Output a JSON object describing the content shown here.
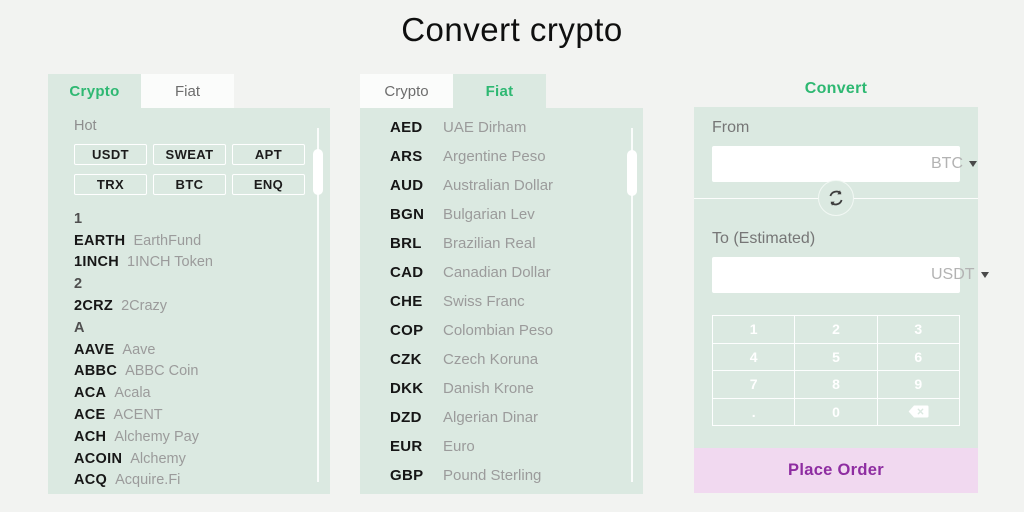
{
  "page": {
    "title": "Convert crypto"
  },
  "colors": {
    "accent_green": "#2eb872",
    "panel_mint": "#dbe9e1",
    "order_purple": "#8e2da1",
    "order_pink": "#f1d9f0"
  },
  "crypto_panel": {
    "tabs": [
      {
        "label": "Crypto",
        "active": true
      },
      {
        "label": "Fiat",
        "active": false
      }
    ],
    "hot_label": "Hot",
    "hot_coins": [
      "USDT",
      "SWEAT",
      "APT",
      "TRX",
      "BTC",
      "ENQ"
    ],
    "list": [
      {
        "type": "group",
        "symbol": "1",
        "name": ""
      },
      {
        "type": "item",
        "symbol": "EARTH",
        "name": "EarthFund"
      },
      {
        "type": "item",
        "symbol": "1INCH",
        "name": "1INCH Token"
      },
      {
        "type": "group",
        "symbol": "2",
        "name": ""
      },
      {
        "type": "item",
        "symbol": "2CRZ",
        "name": "2Crazy"
      },
      {
        "type": "group",
        "symbol": "A",
        "name": ""
      },
      {
        "type": "item",
        "symbol": "AAVE",
        "name": "Aave"
      },
      {
        "type": "item",
        "symbol": "ABBC",
        "name": "ABBC Coin"
      },
      {
        "type": "item",
        "symbol": "ACA",
        "name": "Acala"
      },
      {
        "type": "item",
        "symbol": "ACE",
        "name": "ACENT"
      },
      {
        "type": "item",
        "symbol": "ACH",
        "name": "Alchemy Pay"
      },
      {
        "type": "item",
        "symbol": "ACOIN",
        "name": "Alchemy"
      },
      {
        "type": "item",
        "symbol": "ACQ",
        "name": "Acquire.Fi"
      }
    ]
  },
  "fiat_panel": {
    "tabs": [
      {
        "label": "Crypto",
        "active": false
      },
      {
        "label": "Fiat",
        "active": true
      }
    ],
    "list": [
      {
        "code": "AED",
        "name": "UAE Dirham"
      },
      {
        "code": "ARS",
        "name": "Argentine Peso"
      },
      {
        "code": "AUD",
        "name": "Australian Dollar"
      },
      {
        "code": "BGN",
        "name": "Bulgarian Lev"
      },
      {
        "code": "BRL",
        "name": "Brazilian Real"
      },
      {
        "code": "CAD",
        "name": "Canadian Dollar"
      },
      {
        "code": "CHE",
        "name": "Swiss Franc"
      },
      {
        "code": "COP",
        "name": "Colombian Peso"
      },
      {
        "code": "CZK",
        "name": "Czech Koruna"
      },
      {
        "code": "DKK",
        "name": "Danish Krone"
      },
      {
        "code": "DZD",
        "name": "Algerian Dinar"
      },
      {
        "code": "EUR",
        "name": "Euro"
      },
      {
        "code": "GBP",
        "name": "Pound Sterling"
      }
    ]
  },
  "convert_panel": {
    "title": "Convert",
    "from": {
      "label": "From",
      "value": "",
      "currency": "BTC"
    },
    "to": {
      "label": "To (Estimated)",
      "value": "",
      "currency": "USDT"
    },
    "keypad": [
      "1",
      "2",
      "3",
      "4",
      "5",
      "6",
      "7",
      "8",
      "9",
      ".",
      "0",
      "backspace"
    ],
    "place_order": "Place Order"
  }
}
